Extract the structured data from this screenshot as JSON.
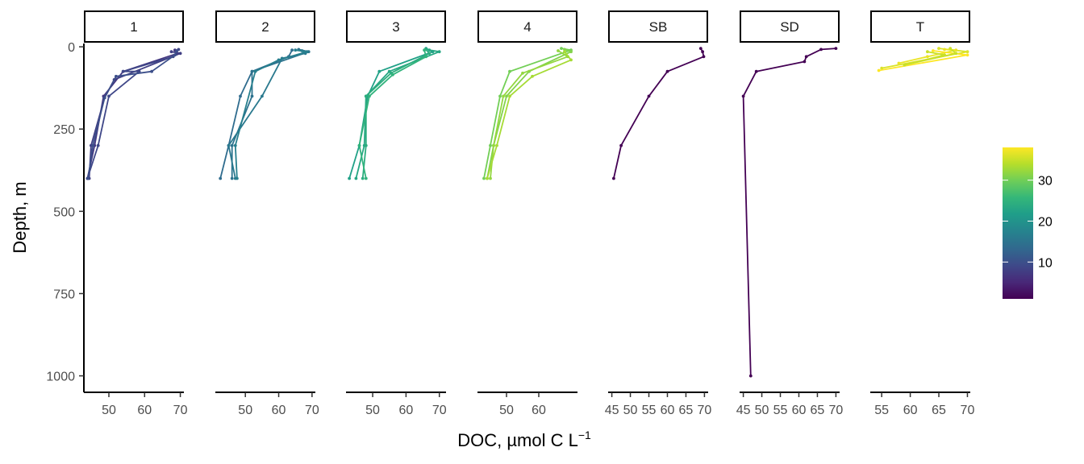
{
  "chart_data": {
    "type": "line",
    "xlabel": "DOC, µmol C L",
    "xlabel_superscript": "−1",
    "ylabel": "Depth, m",
    "y_axis": {
      "reversed": true,
      "lim": [
        -10,
        1050
      ],
      "ticks": [
        0,
        250,
        500,
        750,
        1000
      ],
      "tick_labels": [
        "0",
        "250",
        "500",
        "750",
        "1000"
      ]
    },
    "colorbar": {
      "palette": "viridis",
      "range": [
        1,
        38
      ],
      "ticks": [
        10,
        20,
        30
      ],
      "tick_labels": [
        "10",
        "20",
        "30"
      ]
    },
    "colors": {
      "viridis": [
        "#440154",
        "#482878",
        "#3e4989",
        "#31688e",
        "#26828e",
        "#1f9e89",
        "#35b779",
        "#6ece58",
        "#b5de2b",
        "#fde725"
      ]
    },
    "panels": [
      {
        "strip": "1",
        "xlim": [
          43,
          71
        ],
        "x_ticks": [
          50,
          60,
          70
        ],
        "x_tick_labels": [
          "50",
          "60",
          "70"
        ],
        "series": [
          {
            "color_value": 7,
            "points": [
              [
                68.5,
                10
              ],
              [
                69.2,
                20
              ],
              [
                54,
                75
              ],
              [
                48.5,
                150
              ],
              [
                46,
                300
              ],
              [
                44,
                400
              ]
            ]
          },
          {
            "color_value": 8,
            "points": [
              [
                67.5,
                15
              ],
              [
                70,
                20
              ],
              [
                51.5,
                100
              ],
              [
                48.8,
                155
              ],
              [
                45,
                300
              ],
              [
                44.5,
                400
              ]
            ]
          },
          {
            "color_value": 9,
            "points": [
              [
                69.5,
                8
              ],
              [
                68,
                30
              ],
              [
                54,
                75
              ],
              [
                58.5,
                75
              ],
              [
                50,
                150
              ],
              [
                47,
                300
              ],
              [
                44,
                400
              ]
            ]
          },
          {
            "color_value": 10,
            "points": [
              [
                69,
                12
              ],
              [
                68.5,
                25
              ],
              [
                62,
                75
              ],
              [
                52,
                90
              ],
              [
                48.8,
                155
              ],
              [
                45.5,
                300
              ],
              [
                44.2,
                400
              ]
            ]
          }
        ]
      },
      {
        "strip": "2",
        "xlim": [
          41,
          71
        ],
        "x_ticks": [
          50,
          60,
          70
        ],
        "x_tick_labels": [
          "50",
          "60",
          "70"
        ],
        "series": [
          {
            "color_value": 14,
            "points": [
              [
                64,
                10
              ],
              [
                63,
                30
              ],
              [
                52,
                75
              ],
              [
                48.5,
                150
              ],
              [
                45,
                300
              ],
              [
                42.5,
                400
              ]
            ]
          },
          {
            "color_value": 15,
            "points": [
              [
                66,
                8
              ],
              [
                69,
                15
              ],
              [
                52,
                75
              ],
              [
                52,
                150
              ],
              [
                46,
                300
              ],
              [
                46,
                400
              ]
            ]
          },
          {
            "color_value": 16,
            "points": [
              [
                67,
                12
              ],
              [
                68,
                20
              ],
              [
                61,
                35
              ],
              [
                55,
                150
              ],
              [
                45,
                300
              ],
              [
                47,
                400
              ]
            ]
          },
          {
            "color_value": 17,
            "points": [
              [
                65,
                10
              ],
              [
                68.5,
                15
              ],
              [
                60,
                40
              ],
              [
                53,
                75
              ],
              [
                47,
                300
              ],
              [
                47.5,
                400
              ]
            ]
          }
        ]
      },
      {
        "strip": "3",
        "xlim": [
          42,
          72
        ],
        "x_ticks": [
          50,
          60,
          70
        ],
        "x_tick_labels": [
          "50",
          "60",
          "70"
        ],
        "series": [
          {
            "color_value": 22,
            "points": [
              [
                66,
                5
              ],
              [
                68,
                15
              ],
              [
                52,
                75
              ],
              [
                48.5,
                150
              ],
              [
                46,
                300
              ],
              [
                43,
                400
              ]
            ]
          },
          {
            "color_value": 23,
            "points": [
              [
                67,
                10
              ],
              [
                70,
                15
              ],
              [
                55,
                75
              ],
              [
                48,
                150
              ],
              [
                47.5,
                300
              ],
              [
                45,
                400
              ]
            ]
          },
          {
            "color_value": 24,
            "points": [
              [
                66,
                8
              ],
              [
                67,
                20
              ],
              [
                55.5,
                80
              ],
              [
                48,
                150
              ],
              [
                48,
                300
              ],
              [
                47,
                400
              ]
            ]
          },
          {
            "color_value": 25,
            "points": [
              [
                65.5,
                10
              ],
              [
                66,
                30
              ],
              [
                56,
                85
              ],
              [
                49,
                150
              ],
              [
                46,
                300
              ],
              [
                48,
                400
              ]
            ]
          }
        ]
      },
      {
        "strip": "4",
        "xlim": [
          41,
          72
        ],
        "x_ticks": [
          50,
          60
        ],
        "x_tick_labels": [
          "50",
          "60"
        ],
        "series": [
          {
            "color_value": 30,
            "points": [
              [
                67,
                5
              ],
              [
                70,
                10
              ],
              [
                51,
                75
              ],
              [
                48,
                150
              ],
              [
                45,
                300
              ],
              [
                43,
                400
              ]
            ]
          },
          {
            "color_value": 31,
            "points": [
              [
                68,
                8
              ],
              [
                70,
                15
              ],
              [
                57,
                75
              ],
              [
                50,
                150
              ],
              [
                46,
                300
              ],
              [
                44,
                400
              ]
            ]
          },
          {
            "color_value": 32,
            "points": [
              [
                66,
                12
              ],
              [
                69,
                30
              ],
              [
                55,
                80
              ],
              [
                49,
                150
              ],
              [
                46,
                300
              ],
              [
                45,
                400
              ]
            ]
          },
          {
            "color_value": 33,
            "points": [
              [
                68,
                15
              ],
              [
                70,
                40
              ],
              [
                58,
                90
              ],
              [
                51,
                150
              ],
              [
                47,
                300
              ],
              [
                44,
                400
              ]
            ]
          }
        ]
      },
      {
        "strip": "SB",
        "xlim": [
          44,
          71
        ],
        "x_ticks": [
          45,
          50,
          55,
          60,
          65,
          70
        ],
        "x_tick_labels": [
          "45",
          "50",
          "55",
          "60",
          "65",
          "70"
        ],
        "series": [
          {
            "color_value": 1,
            "points": [
              [
                69,
                5
              ],
              [
                69.5,
                15
              ],
              [
                69.8,
                30
              ],
              [
                60,
                75
              ],
              [
                55,
                150
              ],
              [
                47.5,
                300
              ],
              [
                45.5,
                400
              ]
            ]
          }
        ]
      },
      {
        "strip": "SD",
        "xlim": [
          44,
          71
        ],
        "x_ticks": [
          45,
          50,
          55,
          60,
          65,
          70
        ],
        "x_tick_labels": [
          "45",
          "50",
          "55",
          "60",
          "65",
          "70"
        ],
        "series": [
          {
            "color_value": 1,
            "points": [
              [
                70,
                5
              ],
              [
                66,
                8
              ],
              [
                62,
                30
              ],
              [
                61.5,
                45
              ],
              [
                48.5,
                75
              ],
              [
                45,
                150
              ],
              [
                47,
                1000
              ]
            ]
          }
        ]
      },
      {
        "strip": "T",
        "xlim": [
          53,
          70.5
        ],
        "x_ticks": [
          55,
          60,
          65,
          70
        ],
        "x_tick_labels": [
          "55",
          "60",
          "65",
          "70"
        ],
        "series": [
          {
            "color_value": 36,
            "points": [
              [
                65,
                5
              ],
              [
                70,
                15
              ],
              [
                55,
                65
              ]
            ]
          },
          {
            "color_value": 37,
            "points": [
              [
                66,
                8
              ],
              [
                68,
                10
              ],
              [
                58,
                50
              ],
              [
                63,
                30
              ]
            ]
          },
          {
            "color_value": 38,
            "points": [
              [
                64,
                12
              ],
              [
                70,
                25
              ],
              [
                54.5,
                72
              ]
            ]
          },
          {
            "color_value": 35,
            "points": [
              [
                67,
                5
              ],
              [
                68,
                20
              ],
              [
                59,
                55
              ],
              [
                66,
                25
              ],
              [
                63,
                15
              ]
            ]
          }
        ]
      }
    ]
  }
}
